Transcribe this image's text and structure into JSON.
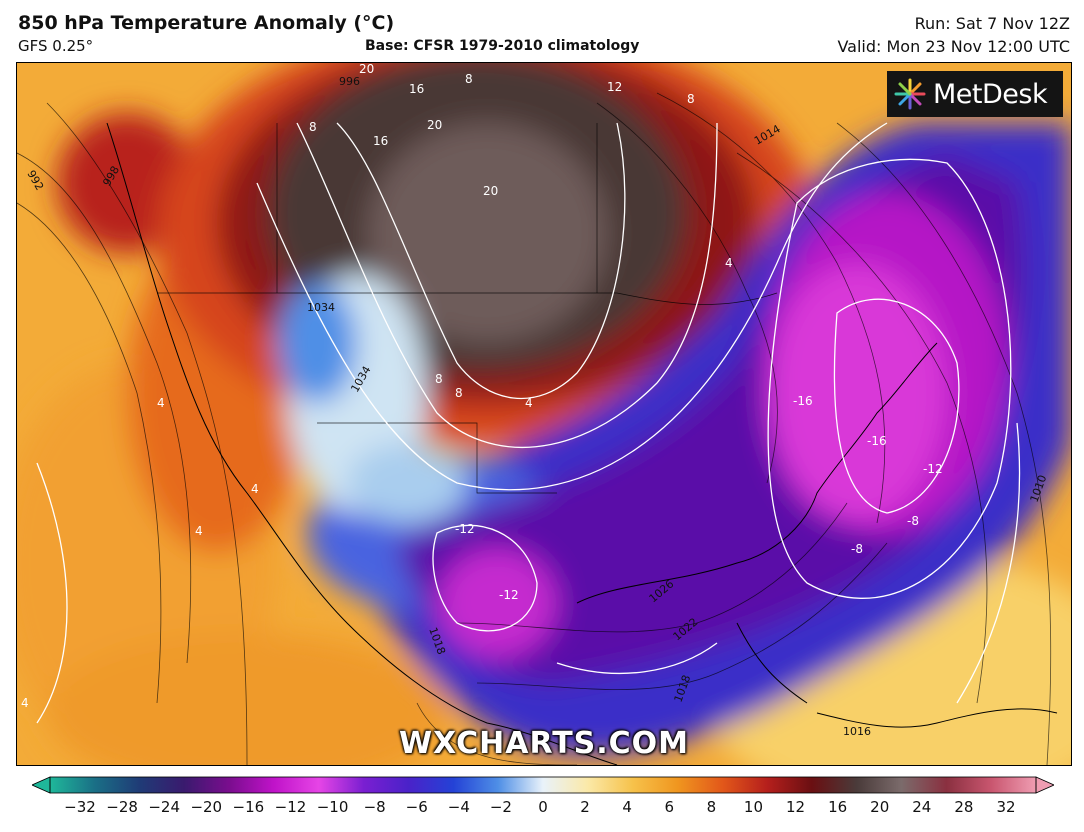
{
  "header": {
    "title": "850 hPa Temperature Anomaly (°C)",
    "model": "GFS 0.25°",
    "base": "Base: CFSR 1979-2010 climatology",
    "run": "Run: Sat 7 Nov 12Z",
    "valid": "Valid: Mon 23 Nov 12:00 UTC"
  },
  "logo": {
    "text": "MetDesk",
    "icon": "metdesk-burst-icon"
  },
  "watermark": "WXCHARTS.COM",
  "colorbar": {
    "ticks": [
      "−32",
      "−28",
      "−24",
      "−20",
      "−16",
      "−12",
      "−10",
      "−8",
      "−6",
      "−4",
      "−2",
      "0",
      "2",
      "4",
      "6",
      "8",
      "10",
      "12",
      "16",
      "20",
      "24",
      "28",
      "32"
    ],
    "colors": [
      "#1fb89a",
      "#1a6f86",
      "#1f3b76",
      "#3a1a6e",
      "#7a0d8e",
      "#c013c9",
      "#e645e6",
      "#7a1fd1",
      "#4a22c9",
      "#2442d6",
      "#4f8fe6",
      "#e9f2fa",
      "#fbe9a8",
      "#f6c24b",
      "#f0961f",
      "#e2581a",
      "#b51f1c",
      "#6a0f12",
      "#4a3b3a",
      "#7b6b6b",
      "#8a3040",
      "#c9566f",
      "#ef9db2"
    ]
  },
  "map": {
    "contour_labels": [
      "20",
      "16",
      "12",
      "8",
      "16",
      "20",
      "20",
      "8",
      "8",
      "4",
      "4",
      "4",
      "4",
      "8",
      "8",
      "4",
      "-16",
      "-16",
      "-12",
      "-8",
      "-8",
      "-12",
      "-12",
      "4"
    ],
    "pressure_labels": [
      "996",
      "1034",
      "1034",
      "1014",
      "1026",
      "1022",
      "1018",
      "1018",
      "1010",
      "1016",
      "998",
      "992"
    ]
  }
}
